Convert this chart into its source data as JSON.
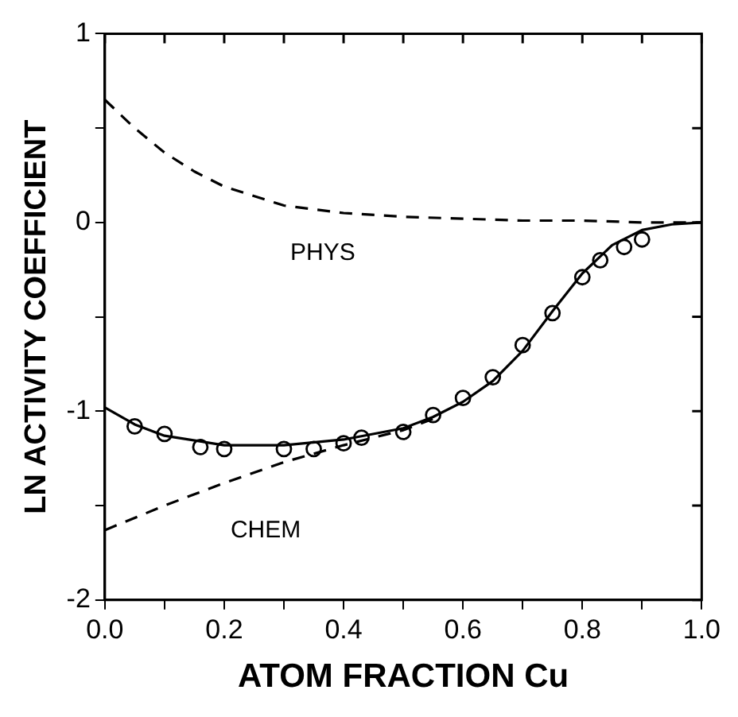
{
  "chart_data": {
    "type": "line",
    "xlabel": "ATOM FRACTION Cu",
    "ylabel": "LN ACTIVITY COEFFICIENT",
    "xlim": [
      0,
      1
    ],
    "ylim": [
      -2,
      1
    ],
    "xticks": [
      {
        "value": 0,
        "label": "0.0"
      },
      {
        "value": 0.1,
        "label": null
      },
      {
        "value": 0.2,
        "label": "0.2"
      },
      {
        "value": 0.3,
        "label": null
      },
      {
        "value": 0.4,
        "label": "0.4"
      },
      {
        "value": 0.5,
        "label": null
      },
      {
        "value": 0.6,
        "label": "0.6"
      },
      {
        "value": 0.7,
        "label": null
      },
      {
        "value": 0.8,
        "label": "0.8"
      },
      {
        "value": 0.9,
        "label": null
      },
      {
        "value": 1,
        "label": "1.0"
      }
    ],
    "yticks": [
      -2,
      {
        "value": -1.5,
        "label": null
      },
      -1,
      {
        "value": -0.5,
        "label": null
      },
      0,
      {
        "value": 0.5,
        "label": null
      },
      1
    ],
    "grid": false,
    "legend": false,
    "series": [
      {
        "color": "#000000",
        "line_style": "solid",
        "marker": "none",
        "x": [
          0,
          0.05,
          0.1,
          0.2,
          0.3,
          0.4,
          0.5,
          0.55,
          0.6,
          0.65,
          0.7,
          0.75,
          0.8,
          0.85,
          0.9,
          0.95,
          1
        ],
        "values": [
          -0.98,
          -1.07,
          -1.13,
          -1.18,
          -1.18,
          -1.15,
          -1.09,
          -1.03,
          -0.95,
          -0.84,
          -0.68,
          -0.47,
          -0.27,
          -0.12,
          -0.04,
          -0.01,
          0
        ]
      },
      {
        "name": "PHYS",
        "color": "#000000",
        "line_style": "dashed",
        "marker": "none",
        "x": [
          0,
          0.05,
          0.1,
          0.15,
          0.2,
          0.3,
          0.4,
          0.5,
          0.6,
          0.7,
          0.8,
          0.9,
          1
        ],
        "values": [
          0.65,
          0.5,
          0.37,
          0.27,
          0.19,
          0.09,
          0.05,
          0.03,
          0.02,
          0.01,
          0.01,
          0,
          0
        ]
      },
      {
        "name": "CHEM",
        "color": "#000000",
        "line_style": "dashed",
        "marker": "none",
        "x": [
          0,
          0.1,
          0.2,
          0.3,
          0.4,
          0.5,
          0.55
        ],
        "values": [
          -1.63,
          -1.5,
          -1.38,
          -1.27,
          -1.18,
          -1.1,
          -1.04
        ]
      },
      {
        "type": "scatter",
        "color": "#000000",
        "marker": "circle",
        "x": [
          0.05,
          0.1,
          0.16,
          0.2,
          0.3,
          0.35,
          0.4,
          0.43,
          0.5,
          0.55,
          0.6,
          0.65,
          0.7,
          0.75,
          0.8,
          0.83,
          0.87,
          0.9
        ],
        "values": [
          -1.08,
          -1.12,
          -1.19,
          -1.2,
          -1.2,
          -1.2,
          -1.17,
          -1.14,
          -1.11,
          -1.02,
          -0.93,
          -0.82,
          -0.65,
          -0.48,
          -0.29,
          -0.2,
          -0.13,
          -0.09
        ]
      }
    ]
  }
}
